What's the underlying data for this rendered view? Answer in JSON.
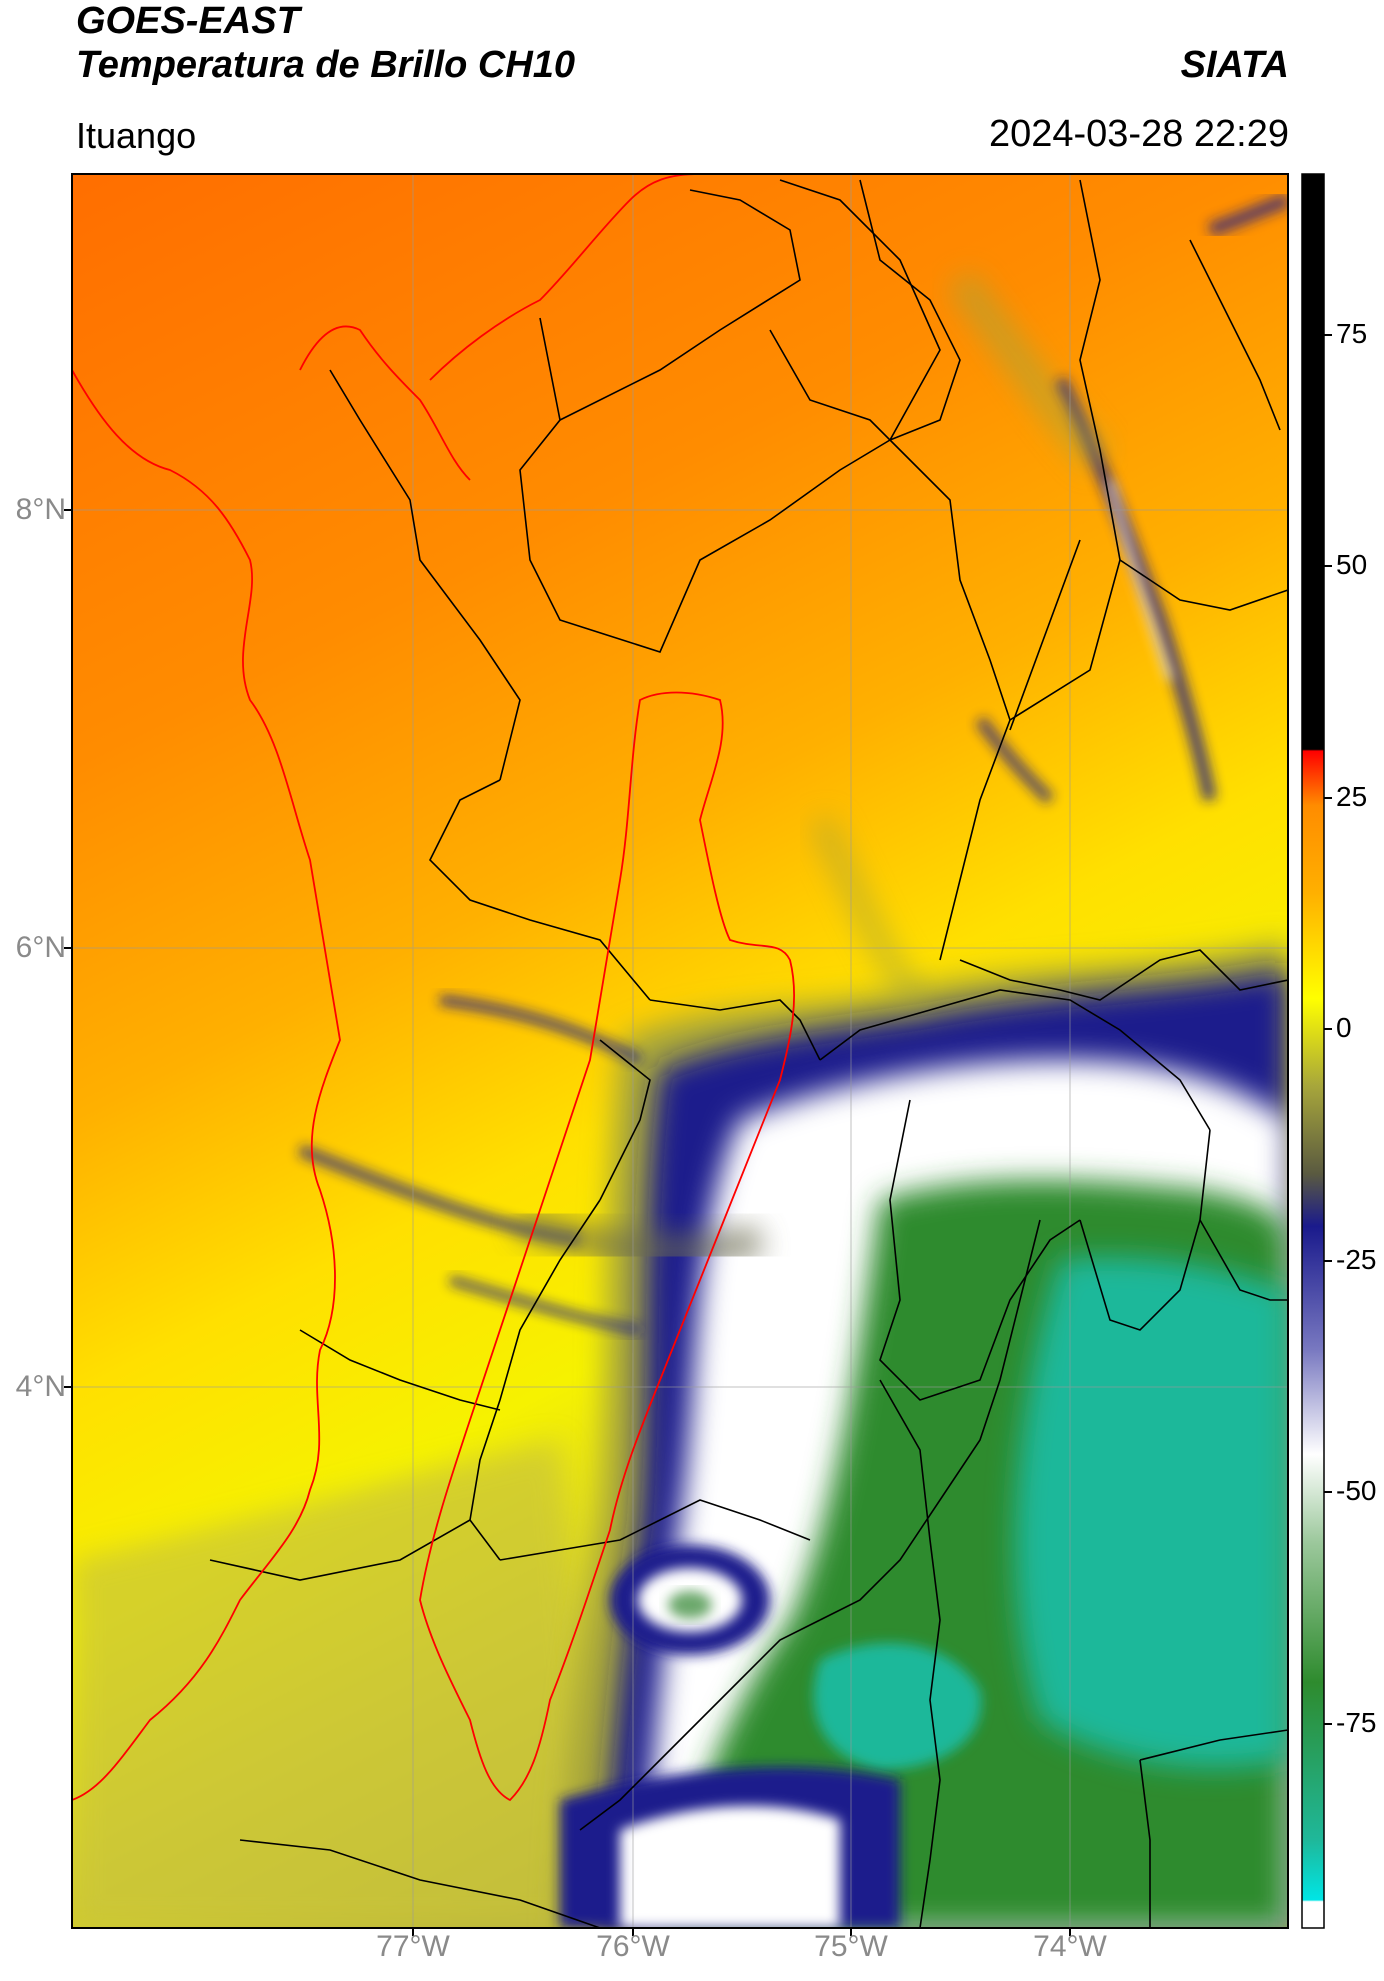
{
  "header": {
    "title_line1": "GOES-EAST",
    "title_line2": "Temperatura de Brillo CH10",
    "organization": "SIATA",
    "region": "Ituango",
    "datetime": "2024-03-28 22:29"
  },
  "map": {
    "latitude_labels": [
      "8°N",
      "6°N",
      "4°N"
    ],
    "longitude_labels": [
      "77°W",
      "76°W",
      "75°W",
      "74°W"
    ],
    "border_colors": {
      "departments": "#000000",
      "coastline_and_basin": "#ff0000"
    }
  },
  "colorbar": {
    "tick_labels": [
      "75",
      "50",
      "25",
      "0",
      "-25",
      "-50",
      "-75"
    ],
    "colors": {
      "warm_max": "#000000",
      "hot": "#ff0000",
      "orange": "#ff8c00",
      "yellow": "#ffff00",
      "olive": "#a7a63b",
      "navy": "#1a1a8c",
      "white": "#ffffff",
      "green": "#2e8b2e",
      "teal": "#1fb89a",
      "cyan": "#00e5e5"
    }
  }
}
